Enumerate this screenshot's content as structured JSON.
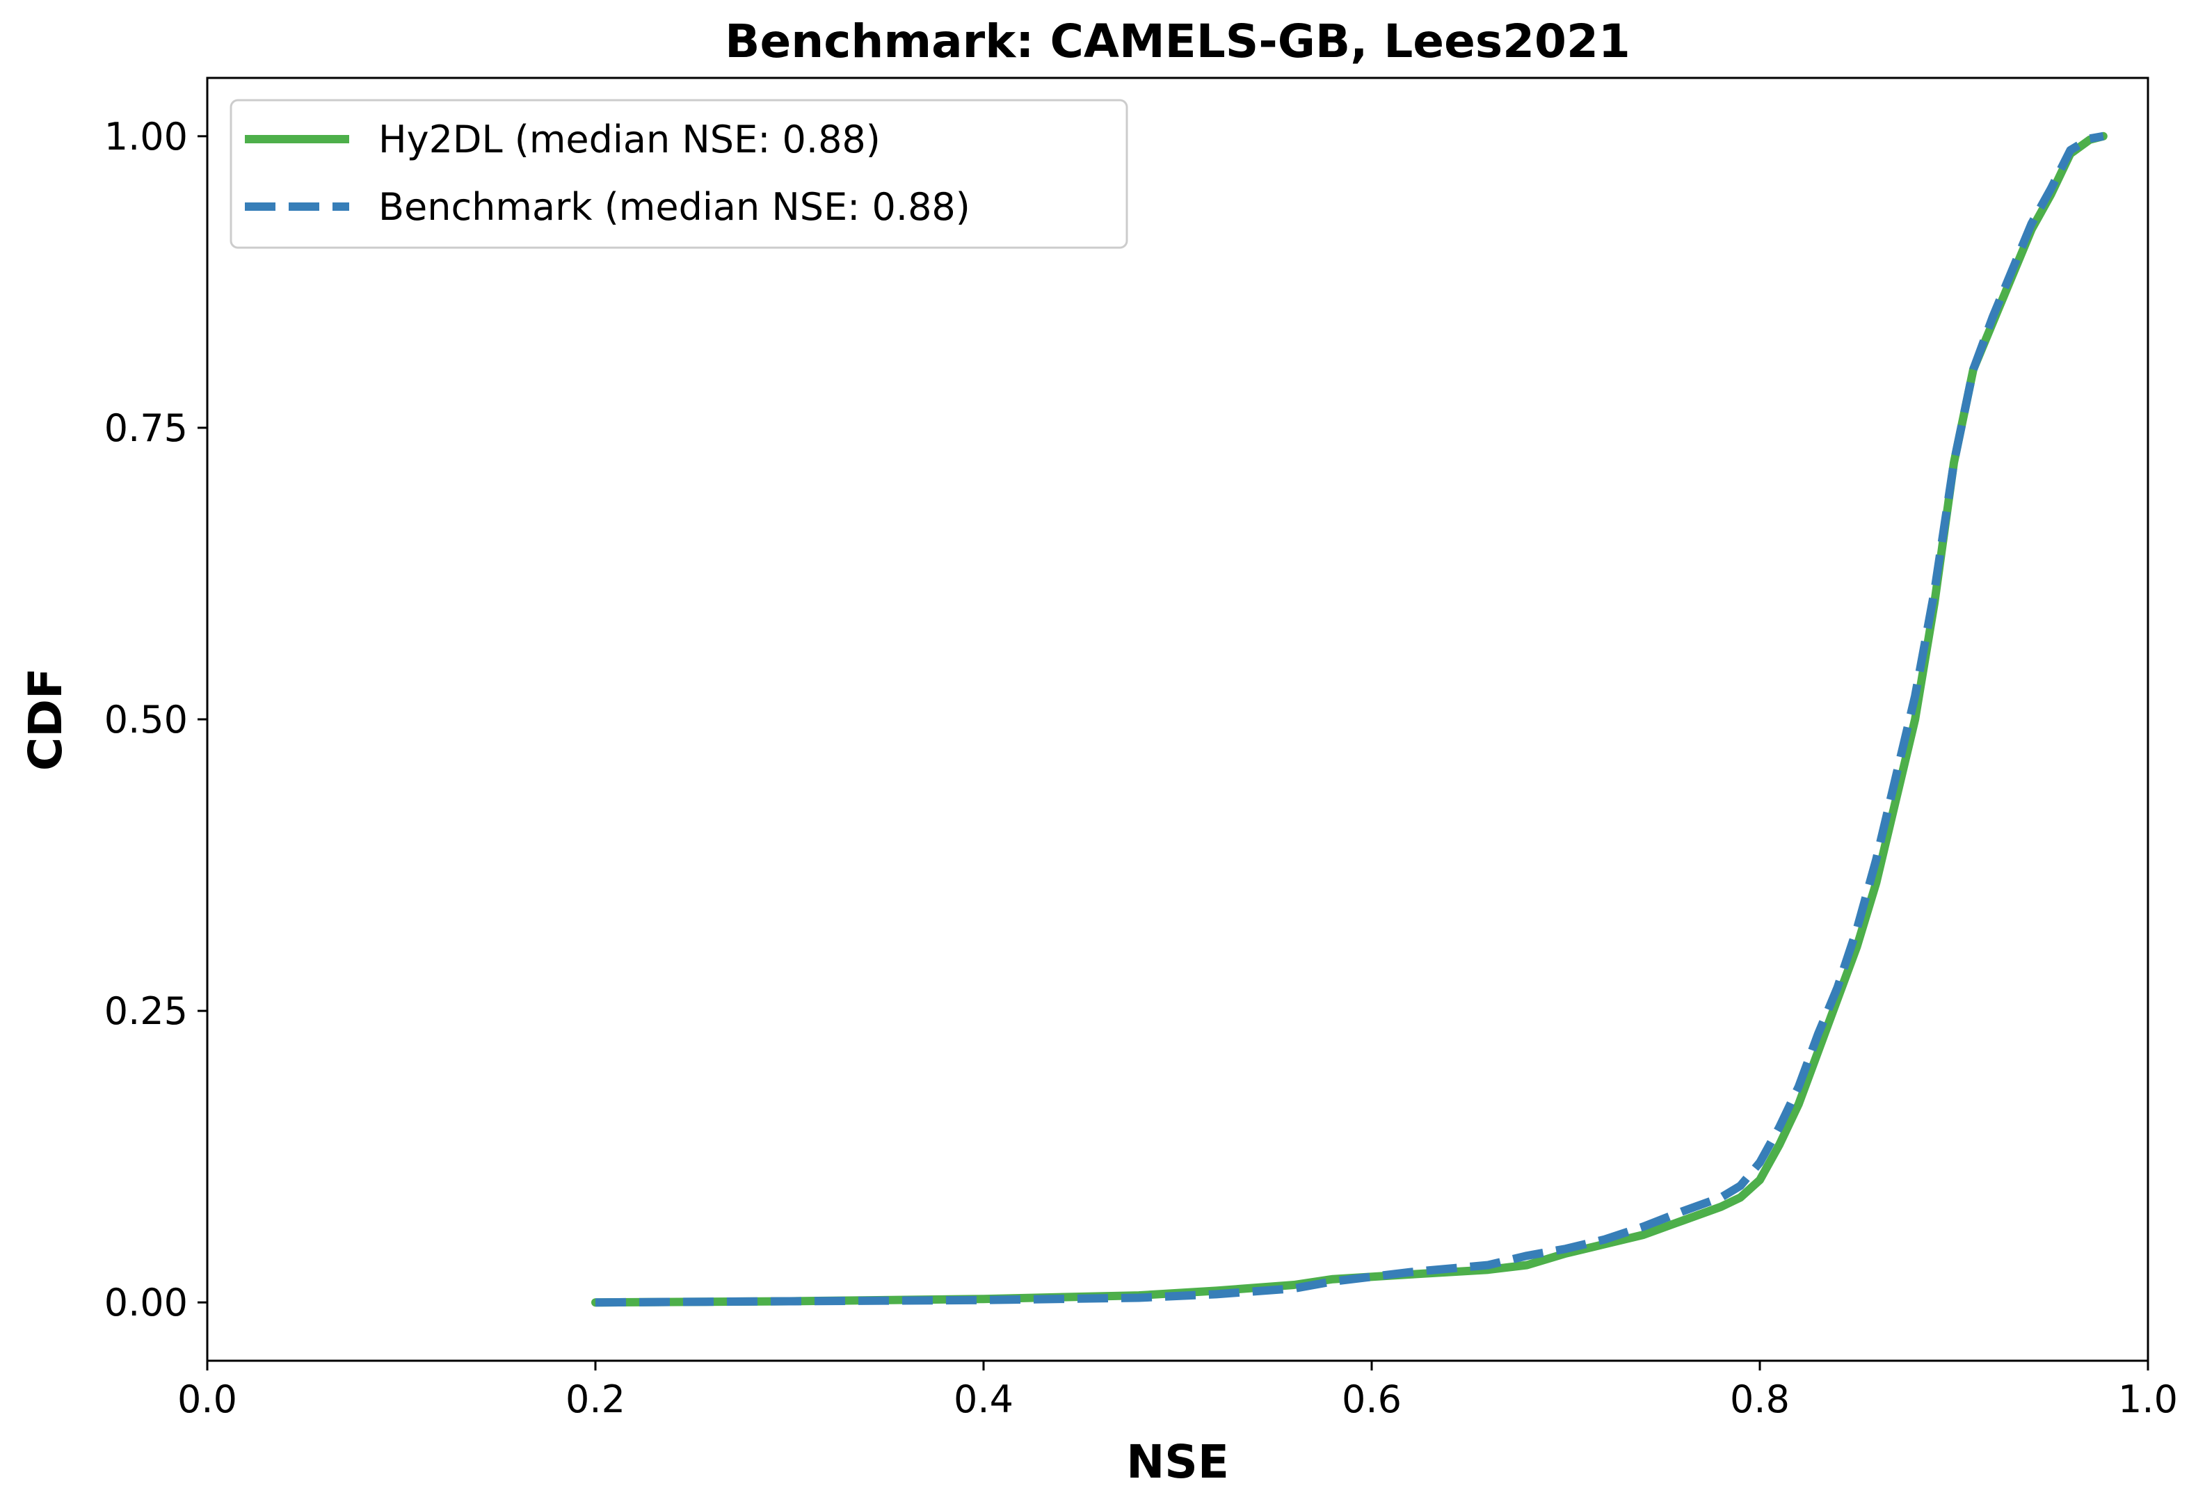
{
  "chart_data": {
    "type": "line",
    "title": "Benchmark: CAMELS-GB, Lees2021",
    "xlabel": "NSE",
    "ylabel": "CDF",
    "xlim": [
      0.0,
      1.0
    ],
    "ylim": [
      -0.05,
      1.05
    ],
    "xticks": [
      0.0,
      0.2,
      0.4,
      0.6,
      0.8,
      1.0
    ],
    "xtick_labels": [
      "0.0",
      "0.2",
      "0.4",
      "0.6",
      "0.8",
      "1.0"
    ],
    "yticks": [
      0.0,
      0.25,
      0.5,
      0.75,
      1.0
    ],
    "ytick_labels": [
      "0.00",
      "0.25",
      "0.50",
      "0.75",
      "1.00"
    ],
    "grid": false,
    "legend_position": "upper-left",
    "series": [
      {
        "name": "Hy2DL (median NSE: 0.88)",
        "color": "#4daf4a",
        "style": "solid",
        "x": [
          0.2,
          0.3,
          0.4,
          0.48,
          0.52,
          0.56,
          0.58,
          0.62,
          0.66,
          0.68,
          0.7,
          0.72,
          0.74,
          0.76,
          0.78,
          0.79,
          0.8,
          0.81,
          0.82,
          0.83,
          0.84,
          0.85,
          0.86,
          0.87,
          0.88,
          0.89,
          0.9,
          0.91,
          0.92,
          0.93,
          0.94,
          0.95,
          0.96,
          0.97,
          0.977
        ],
        "y": [
          0.0,
          0.001,
          0.003,
          0.006,
          0.01,
          0.015,
          0.02,
          0.024,
          0.028,
          0.032,
          0.042,
          0.05,
          0.058,
          0.07,
          0.082,
          0.09,
          0.105,
          0.135,
          0.17,
          0.215,
          0.26,
          0.305,
          0.36,
          0.43,
          0.5,
          0.6,
          0.72,
          0.8,
          0.84,
          0.88,
          0.92,
          0.95,
          0.985,
          0.997,
          1.0
        ]
      },
      {
        "name": "Benchmark (median NSE: 0.88)",
        "color": "#377eb8",
        "style": "dashed",
        "x": [
          0.2,
          0.3,
          0.4,
          0.48,
          0.52,
          0.56,
          0.58,
          0.62,
          0.66,
          0.68,
          0.7,
          0.72,
          0.74,
          0.76,
          0.78,
          0.79,
          0.8,
          0.81,
          0.82,
          0.83,
          0.84,
          0.85,
          0.86,
          0.87,
          0.88,
          0.89,
          0.9,
          0.91,
          0.92,
          0.93,
          0.94,
          0.95,
          0.96,
          0.97,
          0.977
        ],
        "y": [
          0.0,
          0.001,
          0.002,
          0.004,
          0.007,
          0.012,
          0.018,
          0.026,
          0.032,
          0.04,
          0.046,
          0.054,
          0.065,
          0.078,
          0.09,
          0.1,
          0.12,
          0.15,
          0.185,
          0.23,
          0.27,
          0.32,
          0.38,
          0.45,
          0.52,
          0.61,
          0.72,
          0.8,
          0.845,
          0.885,
          0.925,
          0.955,
          0.988,
          0.998,
          1.0
        ]
      }
    ]
  }
}
